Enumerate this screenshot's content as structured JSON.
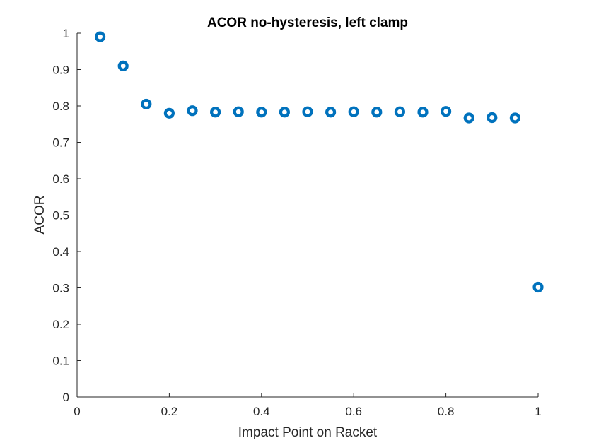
{
  "chart_data": {
    "type": "scatter",
    "title": "ACOR no-hysteresis, left clamp",
    "xlabel": "Impact Point on Racket",
    "ylabel": "ACOR",
    "xlim": [
      0,
      1
    ],
    "ylim": [
      0,
      1
    ],
    "xticks": [
      "0",
      "0.2",
      "0.4",
      "0.6",
      "0.8",
      "1"
    ],
    "yticks": [
      "0",
      "0.1",
      "0.2",
      "0.3",
      "0.4",
      "0.5",
      "0.6",
      "0.7",
      "0.8",
      "0.9",
      "1"
    ],
    "grid": false,
    "marker": "circle",
    "marker_color": "#0072BD",
    "series": [
      {
        "x": [
          0.05,
          0.1,
          0.15,
          0.2,
          0.25,
          0.3,
          0.35,
          0.4,
          0.45,
          0.5,
          0.55,
          0.6,
          0.65,
          0.7,
          0.75,
          0.8,
          0.85,
          0.9,
          0.95,
          1.0
        ],
        "y": [
          0.99,
          0.91,
          0.805,
          0.78,
          0.787,
          0.783,
          0.784,
          0.783,
          0.783,
          0.784,
          0.783,
          0.784,
          0.783,
          0.784,
          0.783,
          0.785,
          0.767,
          0.768,
          0.767,
          0.302
        ]
      }
    ]
  }
}
